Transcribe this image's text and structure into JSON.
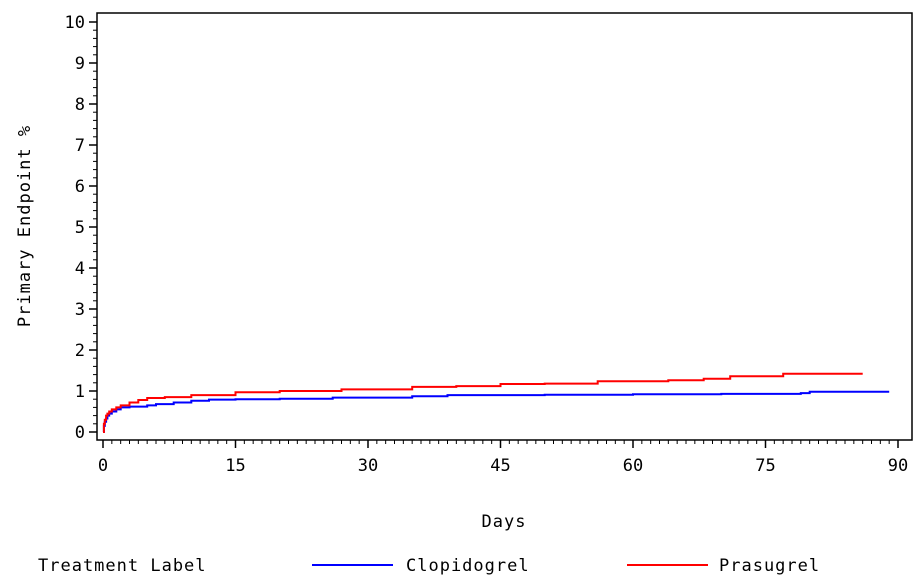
{
  "chart_data": {
    "type": "line",
    "xlabel": "Days",
    "ylabel": "Primary Endpoint %",
    "xlim": [
      0,
      90
    ],
    "ylim": [
      0,
      10
    ],
    "x_ticks": [
      0,
      15,
      30,
      45,
      60,
      75,
      90
    ],
    "x_tick_labels": [
      "0",
      "15",
      "30",
      "45",
      "60",
      "75",
      "90"
    ],
    "y_ticks": [
      0,
      1,
      2,
      3,
      4,
      5,
      6,
      7,
      8,
      9,
      10
    ],
    "y_tick_labels": [
      "0",
      "1",
      "2",
      "3",
      "4",
      "5",
      "6",
      "7",
      "8",
      "9",
      "10"
    ],
    "grid": false,
    "legend": {
      "title": "Treatment Label",
      "placement": "bottom"
    },
    "series": [
      {
        "name": "Clopidogrel",
        "color": "#0000ff",
        "step": true,
        "points": [
          [
            0,
            0.0
          ],
          [
            0.1,
            0.15
          ],
          [
            0.2,
            0.25
          ],
          [
            0.35,
            0.33
          ],
          [
            0.5,
            0.4
          ],
          [
            0.7,
            0.45
          ],
          [
            1,
            0.5
          ],
          [
            1.5,
            0.55
          ],
          [
            2,
            0.6
          ],
          [
            3,
            0.62
          ],
          [
            5,
            0.65
          ],
          [
            6,
            0.68
          ],
          [
            8,
            0.72
          ],
          [
            10,
            0.76
          ],
          [
            12,
            0.79
          ],
          [
            15,
            0.8
          ],
          [
            20,
            0.81
          ],
          [
            26,
            0.84
          ],
          [
            35,
            0.87
          ],
          [
            39,
            0.9
          ],
          [
            50,
            0.91
          ],
          [
            60,
            0.92
          ],
          [
            70,
            0.93
          ],
          [
            79,
            0.95
          ],
          [
            80,
            0.98
          ],
          [
            89,
            0.98
          ]
        ]
      },
      {
        "name": "Prasugrel",
        "color": "#ff0000",
        "step": true,
        "points": [
          [
            0,
            0.0
          ],
          [
            0.1,
            0.2
          ],
          [
            0.2,
            0.3
          ],
          [
            0.35,
            0.4
          ],
          [
            0.5,
            0.45
          ],
          [
            0.7,
            0.5
          ],
          [
            1,
            0.55
          ],
          [
            1.5,
            0.6
          ],
          [
            2,
            0.65
          ],
          [
            3,
            0.72
          ],
          [
            4,
            0.78
          ],
          [
            5,
            0.83
          ],
          [
            7,
            0.85
          ],
          [
            10,
            0.9
          ],
          [
            15,
            0.97
          ],
          [
            20,
            1.0
          ],
          [
            27,
            1.04
          ],
          [
            35,
            1.1
          ],
          [
            40,
            1.12
          ],
          [
            45,
            1.17
          ],
          [
            50,
            1.18
          ],
          [
            56,
            1.24
          ],
          [
            64,
            1.26
          ],
          [
            68,
            1.3
          ],
          [
            71,
            1.36
          ],
          [
            77,
            1.42
          ],
          [
            86,
            1.42
          ]
        ]
      }
    ]
  }
}
